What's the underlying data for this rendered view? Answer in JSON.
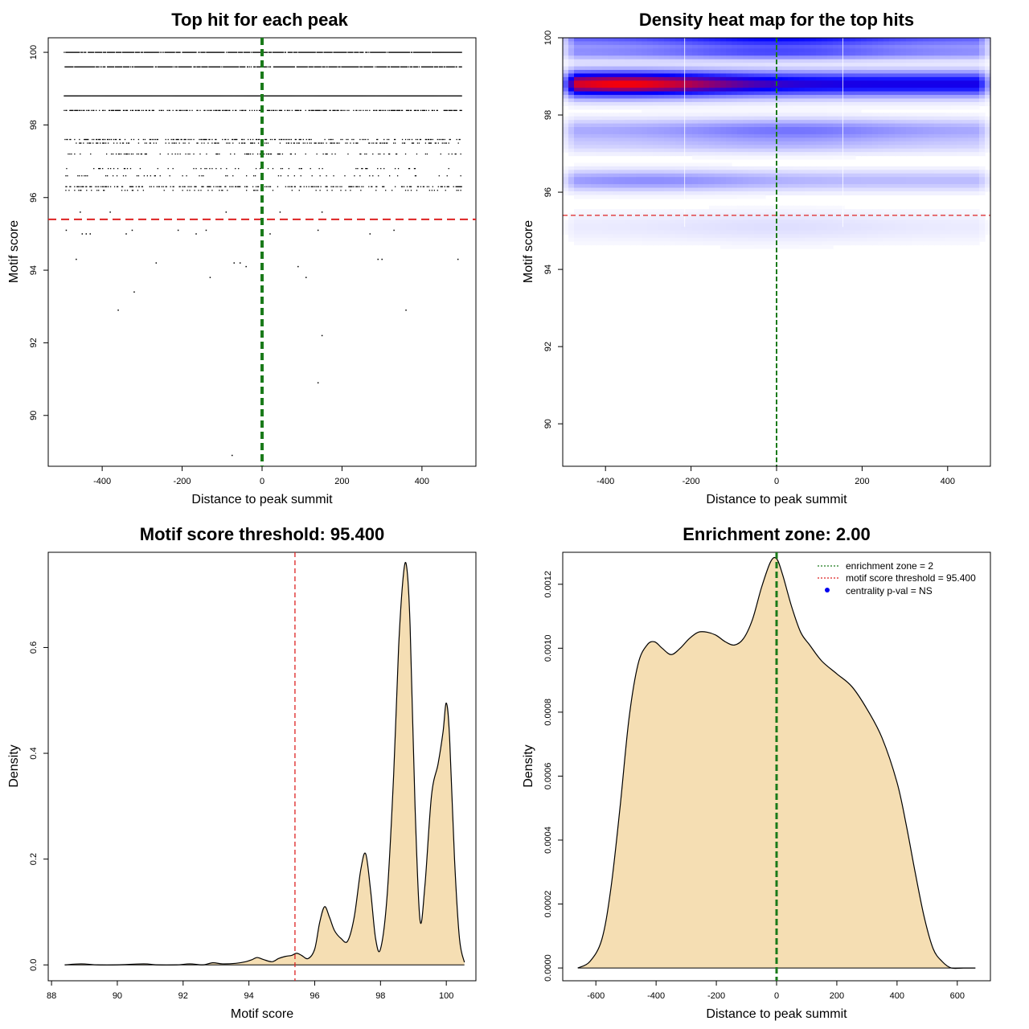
{
  "chart_data": [
    {
      "type": "scatter",
      "title": "Top hit for each peak",
      "xlabel": "Distance to peak summit",
      "ylabel": "Motif score",
      "xlim": [
        -535,
        535
      ],
      "ylim": [
        88.6,
        100.4
      ],
      "xticks": [
        -400,
        -200,
        0,
        200,
        400
      ],
      "yticks": [
        90,
        92,
        94,
        96,
        98,
        100
      ],
      "xtick_labels": [
        "-400",
        "-200",
        "0",
        "200",
        "400"
      ],
      "ytick_labels": [
        "90",
        "92",
        "94",
        "96",
        "98",
        "100"
      ],
      "vline": {
        "x": 0,
        "color": "#1a7a1a",
        "style": "dashed"
      },
      "hline": {
        "y": 95.4,
        "color": "#dd2222",
        "style": "dashed"
      },
      "dense_rows": [
        {
          "y": 100.0,
          "density": 0.9
        },
        {
          "y": 99.6,
          "density": 0.85
        },
        {
          "y": 98.8,
          "density": 1.0
        },
        {
          "y": 98.4,
          "density": 0.55
        }
      ],
      "sparse_rows": [
        {
          "y": 97.6,
          "density": 0.35
        },
        {
          "y": 97.5,
          "density": 0.3
        },
        {
          "y": 97.2,
          "density": 0.2
        },
        {
          "y": 96.8,
          "density": 0.12
        },
        {
          "y": 96.6,
          "density": 0.1
        },
        {
          "y": 96.3,
          "density": 0.4
        },
        {
          "y": 96.2,
          "density": 0.15
        }
      ],
      "points": [
        [
          -490,
          95.1
        ],
        [
          -465,
          94.3
        ],
        [
          -455,
          95.6
        ],
        [
          -450,
          95.0
        ],
        [
          -440,
          95.0
        ],
        [
          -430,
          95.0
        ],
        [
          -380,
          95.6
        ],
        [
          -340,
          95.0
        ],
        [
          -325,
          95.1
        ],
        [
          -265,
          94.2
        ],
        [
          -210,
          95.1
        ],
        [
          -165,
          95.0
        ],
        [
          -140,
          95.1
        ],
        [
          -130,
          93.8
        ],
        [
          -90,
          95.6
        ],
        [
          -70,
          94.2
        ],
        [
          -55,
          94.2
        ],
        [
          -40,
          94.1
        ],
        [
          20,
          95.0
        ],
        [
          45,
          95.6
        ],
        [
          90,
          94.1
        ],
        [
          110,
          93.8
        ],
        [
          140,
          95.1
        ],
        [
          150,
          95.6
        ],
        [
          270,
          95.0
        ],
        [
          290,
          94.3
        ],
        [
          300,
          94.3
        ],
        [
          330,
          95.1
        ],
        [
          490,
          94.3
        ],
        [
          -320,
          93.4
        ],
        [
          -360,
          92.9
        ],
        [
          360,
          92.9
        ],
        [
          150,
          92.2
        ],
        [
          140,
          90.9
        ],
        [
          -75,
          88.9
        ]
      ]
    },
    {
      "type": "heatmap",
      "title": "Density heat map for the top hits",
      "xlabel": "Distance to peak summit",
      "ylabel": "Motif score",
      "xlim": [
        -500,
        500
      ],
      "ylim": [
        88.9,
        100.0
      ],
      "xticks": [
        -400,
        -200,
        0,
        200,
        400
      ],
      "yticks": [
        90,
        92,
        94,
        96,
        98,
        100
      ],
      "xtick_labels": [
        "-400",
        "-200",
        "0",
        "200",
        "400"
      ],
      "ytick_labels": [
        "90",
        "92",
        "94",
        "96",
        "98",
        "100"
      ],
      "colors": {
        "low": "#ffffff",
        "mid": "#0000ff",
        "high": "#ff0000"
      },
      "vline": {
        "x": 0,
        "color": "#1a7a1a",
        "style": "dashed"
      },
      "hline": {
        "y": 95.4,
        "color": "#dd2222",
        "style": "dashed"
      },
      "bands": [
        {
          "y": 98.8,
          "sigma_y": 0.22,
          "intensity": 1.0,
          "hotspot_x": -360
        },
        {
          "y": 100.0,
          "sigma_y": 0.18,
          "intensity": 0.55,
          "hotspot_x": 0
        },
        {
          "y": 99.6,
          "sigma_y": 0.12,
          "intensity": 0.35,
          "hotspot_x": 0
        },
        {
          "y": 97.6,
          "sigma_y": 0.2,
          "intensity": 0.3,
          "hotspot_x": 30
        },
        {
          "y": 96.3,
          "sigma_y": 0.18,
          "intensity": 0.25,
          "hotspot_x": -300
        },
        {
          "y": 97.2,
          "sigma_y": 0.15,
          "intensity": 0.12,
          "hotspot_x": 0
        },
        {
          "y": 95.1,
          "sigma_y": 0.3,
          "intensity": 0.07,
          "hotspot_x": 0
        }
      ]
    },
    {
      "type": "area",
      "title": "Motif score threshold: 95.400",
      "xlabel": "Motif score",
      "ylabel": "Density",
      "xlim": [
        87.9,
        100.9
      ],
      "ylim": [
        -0.03,
        0.78
      ],
      "xticks": [
        88,
        90,
        92,
        94,
        96,
        98,
        100
      ],
      "yticks": [
        0.0,
        0.2,
        0.4,
        0.6
      ],
      "xtick_labels": [
        "88",
        "90",
        "92",
        "94",
        "96",
        "98",
        "100"
      ],
      "ytick_labels": [
        "0.0",
        "0.2",
        "0.4",
        "0.6"
      ],
      "fill": "#f5deb3",
      "vline": {
        "x": 95.4,
        "color": "#dd2222",
        "style": "dashed"
      },
      "x": [
        88.4,
        88.9,
        89.4,
        90.0,
        90.8,
        91.2,
        91.8,
        92.2,
        92.6,
        92.9,
        93.2,
        93.6,
        93.9,
        94.1,
        94.25,
        94.45,
        94.7,
        94.9,
        95.1,
        95.3,
        95.45,
        95.6,
        95.8,
        96.0,
        96.15,
        96.3,
        96.45,
        96.6,
        96.8,
        97.0,
        97.2,
        97.4,
        97.55,
        97.7,
        97.85,
        98.0,
        98.2,
        98.4,
        98.55,
        98.7,
        98.8,
        98.9,
        99.05,
        99.2,
        99.35,
        99.55,
        99.75,
        99.9,
        100.0,
        100.1,
        100.25,
        100.4,
        100.55
      ],
      "y": [
        0.0,
        0.002,
        0.0,
        0.0,
        0.002,
        0.0,
        0.0,
        0.002,
        0.0,
        0.004,
        0.002,
        0.003,
        0.006,
        0.01,
        0.014,
        0.01,
        0.006,
        0.012,
        0.016,
        0.018,
        0.022,
        0.018,
        0.012,
        0.03,
        0.08,
        0.11,
        0.09,
        0.065,
        0.05,
        0.045,
        0.09,
        0.18,
        0.21,
        0.14,
        0.05,
        0.03,
        0.13,
        0.36,
        0.6,
        0.74,
        0.75,
        0.64,
        0.3,
        0.085,
        0.15,
        0.32,
        0.38,
        0.44,
        0.495,
        0.43,
        0.2,
        0.05,
        0.005
      ]
    },
    {
      "type": "area",
      "title": "Enrichment zone: 2.00",
      "xlabel": "Distance to peak summit",
      "ylabel": "Density",
      "xlim": [
        -710,
        710
      ],
      "ylim": [
        -4e-05,
        0.0013
      ],
      "xticks": [
        -600,
        -400,
        -200,
        0,
        200,
        400,
        600
      ],
      "yticks": [
        0.0,
        0.0002,
        0.0004,
        0.0006,
        0.0008,
        0.001,
        0.0012
      ],
      "xtick_labels": [
        "-600",
        "-400",
        "-200",
        "0",
        "200",
        "400",
        "600"
      ],
      "ytick_labels": [
        "0.0000",
        "0.0002",
        "0.0004",
        "0.0006",
        "0.0008",
        "0.0010",
        "0.0012"
      ],
      "fill": "#f5deb3",
      "vline": {
        "x": 0,
        "color": "#1a7a1a",
        "style": "dashed"
      },
      "x": [
        -660,
        -620,
        -580,
        -550,
        -520,
        -490,
        -460,
        -430,
        -405,
        -380,
        -350,
        -320,
        -290,
        -260,
        -230,
        -200,
        -170,
        -140,
        -110,
        -80,
        -50,
        -20,
        0,
        20,
        50,
        80,
        110,
        150,
        200,
        250,
        300,
        350,
        400,
        430,
        460,
        490,
        520,
        550,
        580,
        620,
        660
      ],
      "y": [
        0.0,
        2e-05,
        9e-05,
        0.00025,
        0.0005,
        0.00078,
        0.00095,
        0.00101,
        0.00102,
        0.001,
        0.00098,
        0.001,
        0.00103,
        0.00105,
        0.00105,
        0.00104,
        0.00102,
        0.00101,
        0.00103,
        0.00109,
        0.00119,
        0.00127,
        0.00128,
        0.00123,
        0.00113,
        0.00105,
        0.00101,
        0.00096,
        0.00092,
        0.00088,
        0.00081,
        0.00072,
        0.00058,
        0.00045,
        0.0003,
        0.00016,
        6e-05,
        2e-05,
        0.0,
        0.0,
        0.0
      ],
      "legend": {
        "position": "top-right",
        "items": [
          {
            "label": "enrichment zone = 2",
            "color": "#1a7a1a",
            "kind": "dotted-line"
          },
          {
            "label": "motif score threshold = 95.400",
            "color": "#dd2222",
            "kind": "dotted-line"
          },
          {
            "label": "centrality p-val = NS",
            "color": "#0000ee",
            "kind": "dot"
          }
        ]
      }
    }
  ]
}
